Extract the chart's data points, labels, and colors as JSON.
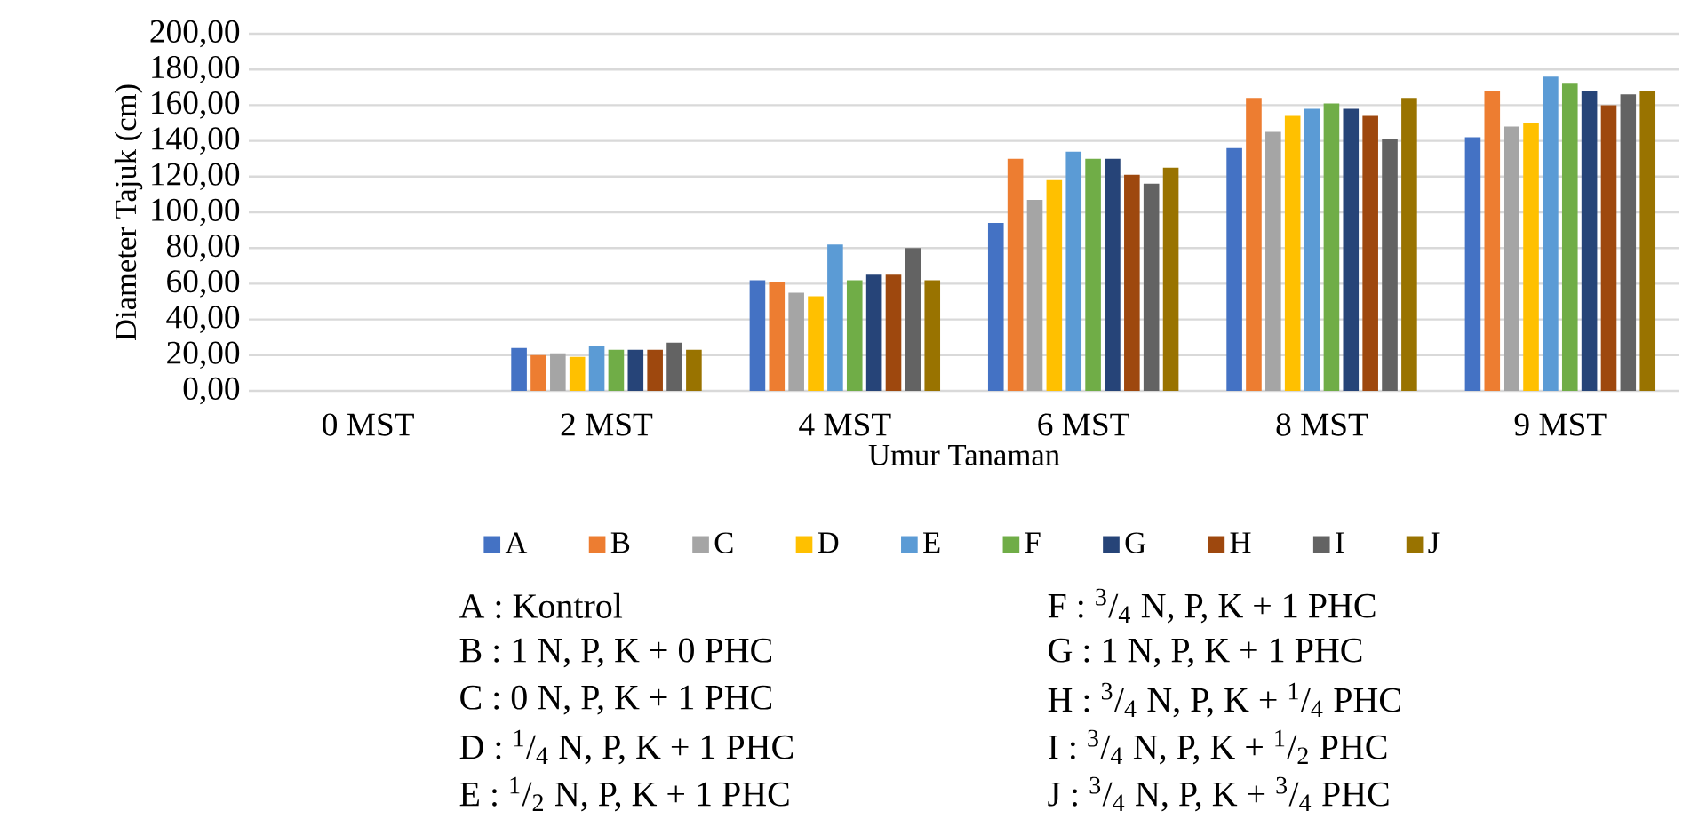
{
  "chart_data": {
    "type": "bar",
    "xlabel": "Umur Tanaman",
    "ylabel": "Diameter Tajuk (cm)",
    "categories": [
      "0 MST",
      "2 MST",
      "4 MST",
      "6 MST",
      "8 MST",
      "9 MST"
    ],
    "series": [
      {
        "name": "A",
        "color": "#4472c4",
        "values": [
          null,
          24,
          62,
          94,
          136,
          142
        ]
      },
      {
        "name": "B",
        "color": "#ed7d31",
        "values": [
          null,
          20,
          61,
          130,
          164,
          168
        ]
      },
      {
        "name": "C",
        "color": "#a5a5a5",
        "values": [
          null,
          21,
          55,
          107,
          145,
          148
        ]
      },
      {
        "name": "D",
        "color": "#ffc000",
        "values": [
          null,
          19,
          53,
          118,
          154,
          150
        ]
      },
      {
        "name": "E",
        "color": "#5b9bd5",
        "values": [
          null,
          25,
          82,
          134,
          158,
          176
        ]
      },
      {
        "name": "F",
        "color": "#70ad47",
        "values": [
          null,
          23,
          62,
          130,
          161,
          172
        ]
      },
      {
        "name": "G",
        "color": "#264478",
        "values": [
          null,
          23,
          65,
          130,
          158,
          168
        ]
      },
      {
        "name": "H",
        "color": "#9e480e",
        "values": [
          null,
          23,
          65,
          121,
          154,
          160
        ]
      },
      {
        "name": "I",
        "color": "#636363",
        "values": [
          null,
          27,
          80,
          116,
          141,
          166
        ]
      },
      {
        "name": "J",
        "color": "#997300",
        "values": [
          null,
          23,
          62,
          125,
          164,
          168
        ]
      }
    ],
    "ylim": [
      0,
      200
    ],
    "yticks": [
      {
        "value": 0,
        "label": "0,00"
      },
      {
        "value": 20,
        "label": "20,00"
      },
      {
        "value": 40,
        "label": "40,00"
      },
      {
        "value": 60,
        "label": "60,00"
      },
      {
        "value": 80,
        "label": "80,00"
      },
      {
        "value": 100,
        "label": "100,00"
      },
      {
        "value": 120,
        "label": "120,00"
      },
      {
        "value": 140,
        "label": "140,00"
      },
      {
        "value": 160,
        "label": "160,00"
      },
      {
        "value": 180,
        "label": "180,00"
      },
      {
        "value": 200,
        "label": "200,00"
      }
    ],
    "grid": "y",
    "legend": "bottom",
    "annotations": [
      "A : Kontrol",
      "B : 1 N, P, K + 0 PHC",
      "C : 0 N, P, K + 1 PHC",
      "D : $^{1}$/$_{4}$ N, P, K + 1 PHC",
      "E : $^{1}$/$_{2}$ N, P, K + 1 PHC",
      "F : $^{3}$/$_{4}$ N, P, K + 1 PHC",
      "G : 1 N, P, K + 1 PHC",
      "H : $^{3}$/$_{4}$ N, P, K + $^{1}$/$_{4}$ PHC",
      "I : $^{3}$/$_{4}$ N, P, K + $^{1}$/$_{2}$ PHC",
      "J :  $^{3}$/$_{4}$ N, P, K + $^{3}$/$_{4}$ PHC"
    ]
  }
}
